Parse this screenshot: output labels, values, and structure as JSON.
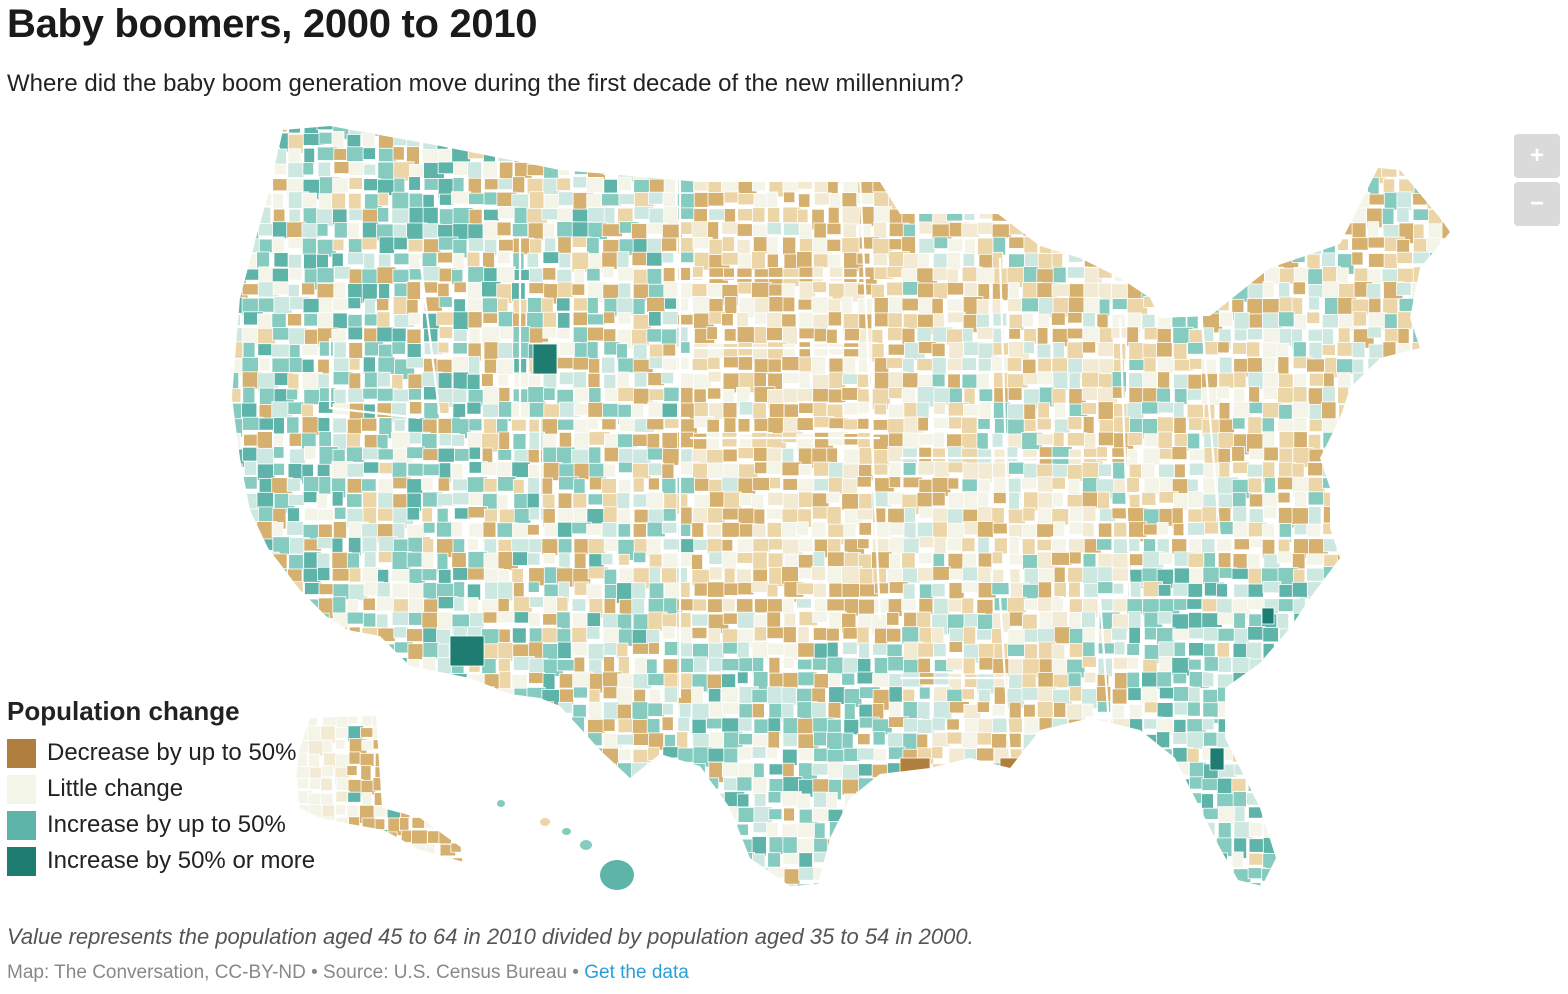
{
  "header": {
    "title": "Baby boomers, 2000 to 2010",
    "subtitle": "Where did the baby boom generation move during the first decade of the new millennium?"
  },
  "zoom_controls": {
    "zoom_in_label": "+",
    "zoom_out_label": "−"
  },
  "legend": {
    "title": "Population change",
    "items": [
      {
        "label": "Decrease by up to 50%",
        "color": "#b07f3e"
      },
      {
        "label": "Little change",
        "color": "#f3f5e8"
      },
      {
        "label": "Increase by up to 50%",
        "color": "#5fb4aa"
      },
      {
        "label": "Increase by 50% or more",
        "color": "#1e7d70"
      }
    ]
  },
  "palette": {
    "decrease_strong": "#b07f3e",
    "decrease": "#d6b06e",
    "decrease_light": "#ecd5a6",
    "neutral": "#f4f5e8",
    "neutral_warm": "#f2ead2",
    "increase_light": "#cde8e1",
    "increase": "#86cbbf",
    "increase_mid": "#5fb4aa",
    "increase_strong": "#1e7d70",
    "border": "#ffffff"
  },
  "footer": {
    "note": "Value represents the population aged 45 to 64 in 2010 divided by population aged 35 to 54 in 2000.",
    "credit_text": "Map: The Conversation, CC-BY-ND • Source: U.S. Census Bureau • ",
    "data_link": "Get the data"
  }
}
